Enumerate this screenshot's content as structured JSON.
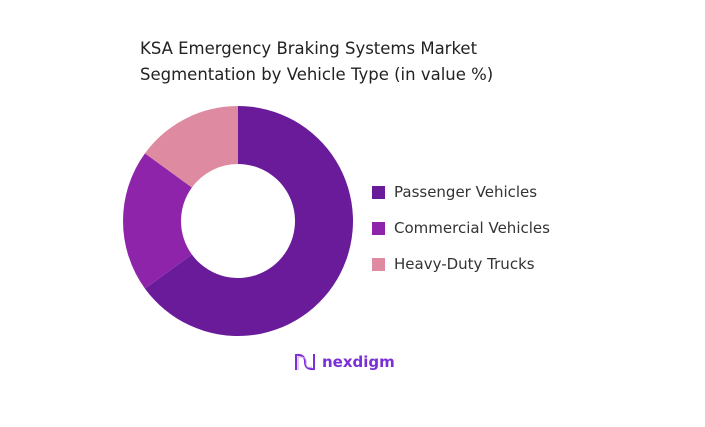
{
  "chart_data": {
    "type": "pie",
    "donut": true,
    "title_lines": [
      "KSA Emergency Braking Systems Market",
      "Segmentation by Vehicle Type (in value %)"
    ],
    "categories": [
      "Passenger Vehicles",
      "Commercial Vehicles",
      "Heavy-Duty Trucks"
    ],
    "values": [
      65,
      20,
      15
    ],
    "colors": [
      "#6a1b9a",
      "#8e24aa",
      "#de8aa0"
    ],
    "legend_position": "right"
  },
  "brand": {
    "name": "nexdigm",
    "color": "#7b2fd6"
  }
}
